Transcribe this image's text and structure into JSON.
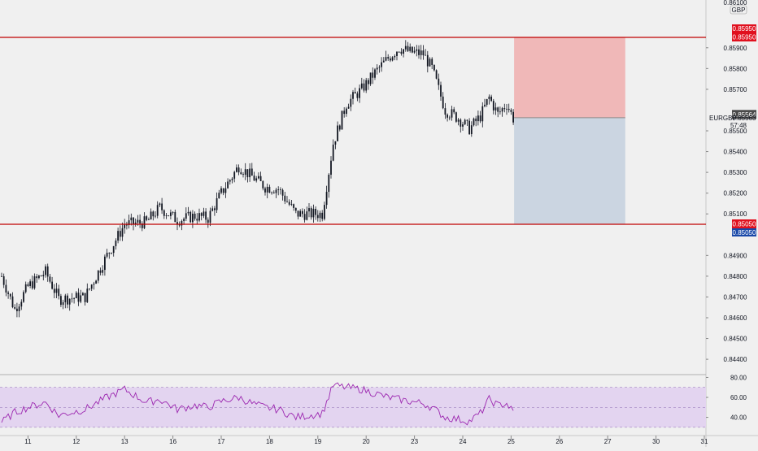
{
  "colors": {
    "background": "#f0f0f0",
    "candle": "#131722",
    "level_line": "#c00000",
    "stop_zone": "#f0b8b8",
    "target_zone": "#cbd5e1",
    "rsi": "#9c27b0",
    "rsi_band": "#e3d4f0",
    "resistance_badge": "#e0101e",
    "support_badge": "#1848a8",
    "price_badge": "#4a4a4a"
  },
  "currency_label": "GBP",
  "symbol_label": "EURGBP",
  "countdown_label": "57:48",
  "top_clipped_label": "0.86100",
  "chart_data": [
    {
      "type": "candlestick",
      "symbol": "EURGBP",
      "y_axis": {
        "ticks": [
          "0.84400",
          "0.84500",
          "0.84600",
          "0.84700",
          "0.84800",
          "0.84900",
          "0.85100",
          "0.85200",
          "0.85300",
          "0.85400",
          "0.85500",
          "0.85700",
          "0.85800",
          "0.85900"
        ],
        "range": [
          0.8433,
          0.8613
        ]
      },
      "x_axis": {
        "ticks": [
          "11",
          "12",
          "13",
          "16",
          "17",
          "18",
          "19",
          "20",
          "23",
          "24",
          "25",
          "26",
          "27",
          "30",
          "31"
        ],
        "tick_index": [
          12,
          34,
          56,
          78,
          100,
          122,
          144,
          166,
          188,
          210,
          232,
          254,
          276,
          298,
          320
        ],
        "bars_per_day": 22
      },
      "keypoints": [
        [
          0,
          0.848
        ],
        [
          6,
          0.8464
        ],
        [
          12,
          0.8475
        ],
        [
          20,
          0.8482
        ],
        [
          26,
          0.8469
        ],
        [
          38,
          0.847
        ],
        [
          48,
          0.849
        ],
        [
          56,
          0.8505
        ],
        [
          66,
          0.8506
        ],
        [
          72,
          0.8513
        ],
        [
          80,
          0.8507
        ],
        [
          88,
          0.8509
        ],
        [
          94,
          0.8508
        ],
        [
          100,
          0.852
        ],
        [
          108,
          0.8533
        ],
        [
          114,
          0.8528
        ],
        [
          120,
          0.8523
        ],
        [
          126,
          0.8522
        ],
        [
          134,
          0.851
        ],
        [
          146,
          0.851
        ],
        [
          151,
          0.8544
        ],
        [
          157,
          0.8563
        ],
        [
          164,
          0.857
        ],
        [
          170,
          0.8578
        ],
        [
          176,
          0.8585
        ],
        [
          181,
          0.859
        ],
        [
          186,
          0.8588
        ],
        [
          192,
          0.8587
        ],
        [
          196,
          0.858
        ],
        [
          202,
          0.856
        ],
        [
          208,
          0.8556
        ],
        [
          213,
          0.8551
        ],
        [
          218,
          0.8557
        ],
        [
          222,
          0.8566
        ],
        [
          226,
          0.8558
        ],
        [
          230,
          0.8563
        ],
        [
          233,
          0.8556
        ]
      ],
      "bar_count": 234,
      "levels": [
        {
          "name": "resistance",
          "value": 0.8595,
          "label": "0.85950"
        },
        {
          "name": "support",
          "value": 0.8505,
          "label": "0.85050"
        }
      ],
      "current_price": {
        "value": 0.85564,
        "label": "0.85564"
      },
      "position_tool": {
        "entry": 0.85563,
        "entry_label": "0.85563",
        "stop": 0.8595,
        "target": 0.8505,
        "start_bar": 233,
        "end_bar": 284
      }
    },
    {
      "type": "line",
      "name": "rsi",
      "y_axis": {
        "ticks": [
          "80.00",
          "60.00",
          "40.00"
        ],
        "range": [
          25,
          82
        ]
      },
      "band": [
        30,
        70
      ],
      "midline": 50,
      "keypoints": [
        [
          0,
          35
        ],
        [
          6,
          45
        ],
        [
          12,
          50
        ],
        [
          20,
          55
        ],
        [
          26,
          42
        ],
        [
          38,
          48
        ],
        [
          48,
          60
        ],
        [
          56,
          68
        ],
        [
          66,
          55
        ],
        [
          72,
          58
        ],
        [
          80,
          48
        ],
        [
          88,
          52
        ],
        [
          94,
          50
        ],
        [
          100,
          56
        ],
        [
          108,
          60
        ],
        [
          114,
          54
        ],
        [
          120,
          50
        ],
        [
          126,
          48
        ],
        [
          134,
          40
        ],
        [
          146,
          44
        ],
        [
          151,
          72
        ],
        [
          157,
          70
        ],
        [
          164,
          68
        ],
        [
          170,
          64
        ],
        [
          176,
          60
        ],
        [
          181,
          58
        ],
        [
          186,
          56
        ],
        [
          192,
          54
        ],
        [
          196,
          50
        ],
        [
          202,
          40
        ],
        [
          208,
          38
        ],
        [
          213,
          36
        ],
        [
          218,
          44
        ],
        [
          222,
          58
        ],
        [
          226,
          52
        ],
        [
          230,
          54
        ],
        [
          233,
          45
        ]
      ]
    }
  ]
}
